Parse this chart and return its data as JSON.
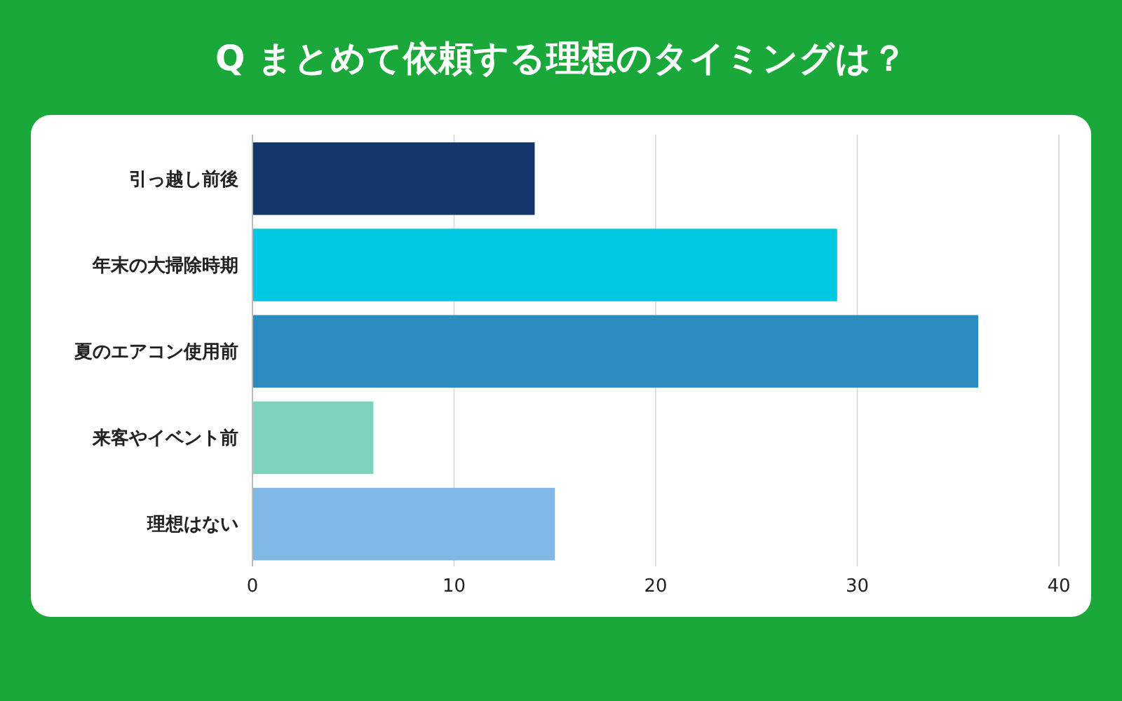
{
  "chart_data": {
    "type": "bar",
    "orientation": "horizontal",
    "title": "Q まとめて依頼する理想のタイミングは？",
    "categories": [
      "引っ越し前後",
      "年末の大掃除時期",
      "夏のエアコン使用前",
      "来客やイベント前",
      "理想はない"
    ],
    "values": [
      14,
      29,
      36,
      6,
      15
    ],
    "colors": [
      "#14366b",
      "#00c8e0",
      "#2e8bbf",
      "#7dd3c0",
      "#80b8e8"
    ],
    "xlim": [
      0,
      40
    ],
    "xticks": [
      0,
      10,
      20,
      30,
      40
    ],
    "grid": "x"
  }
}
